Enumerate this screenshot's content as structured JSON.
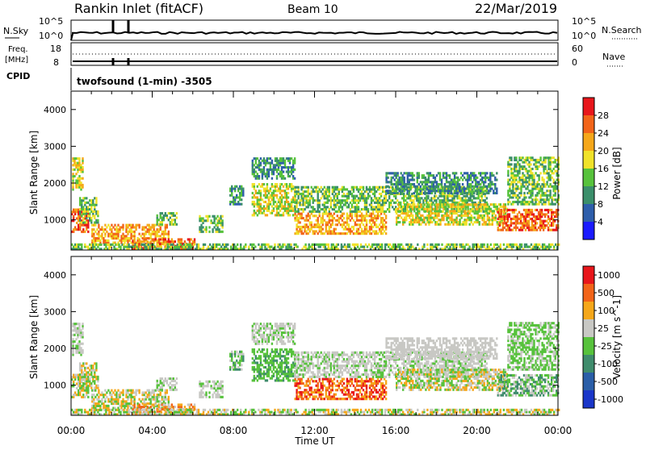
{
  "header": {
    "station": "Rankin Inlet (fitACF)",
    "beam": "Beam 10",
    "date": "22/Mar/2019"
  },
  "top_panel": {
    "nsky_label": "N.Sky",
    "nsearch_label": "N.Search",
    "freq_label_1": "Freq.",
    "freq_label_2": "[MHz]",
    "nave_label": "Nave",
    "cpid_label": "CPID",
    "cpid_text": "twofsound (1-min) -3505",
    "left_ticks": [
      "10^5",
      "10^0",
      "18",
      "8"
    ],
    "right_ticks": [
      "10^5",
      "10^0",
      "60",
      "0"
    ]
  },
  "chart_data": [
    {
      "type": "heatmap",
      "title": "",
      "xlabel": "Time UT",
      "ylabel": "Slant Range [km]",
      "xlim": [
        "00:00",
        "24:00"
      ],
      "ylim": [
        180,
        4500
      ],
      "x_ticks": [
        "00:00",
        "04:00",
        "08:00",
        "12:00",
        "16:00",
        "20:00",
        "00:00"
      ],
      "y_ticks": [
        1000,
        2000,
        3000,
        4000
      ],
      "colorbar": {
        "label": "Power [dB]",
        "ticks": [
          "4",
          "8",
          "12",
          "16",
          "20",
          "24",
          "28"
        ],
        "colors": [
          "#1a1aff",
          "#2e5eab",
          "#3b8f6b",
          "#57c23c",
          "#f0e22a",
          "#f5a71a",
          "#f26419",
          "#e8161b"
        ]
      }
    },
    {
      "type": "heatmap",
      "title": "",
      "xlabel": "Time UT",
      "ylabel": "Slant Range [km]",
      "xlim": [
        "00:00",
        "24:00"
      ],
      "ylim": [
        180,
        4500
      ],
      "x_ticks": [
        "00:00",
        "04:00",
        "08:00",
        "12:00",
        "16:00",
        "20:00",
        "00:00"
      ],
      "y_ticks": [
        1000,
        2000,
        3000,
        4000
      ],
      "colorbar": {
        "label": "Velocity [m s^-1]",
        "ticks": [
          "1000",
          "500",
          "100",
          "25",
          "-25",
          "-100",
          "-500",
          "-1000"
        ],
        "colors": [
          "#1a36c9",
          "#2a5ea8",
          "#3f8c6c",
          "#57c23c",
          "#c8c8c4",
          "#f5a71a",
          "#f26419",
          "#e8161b"
        ]
      }
    }
  ]
}
